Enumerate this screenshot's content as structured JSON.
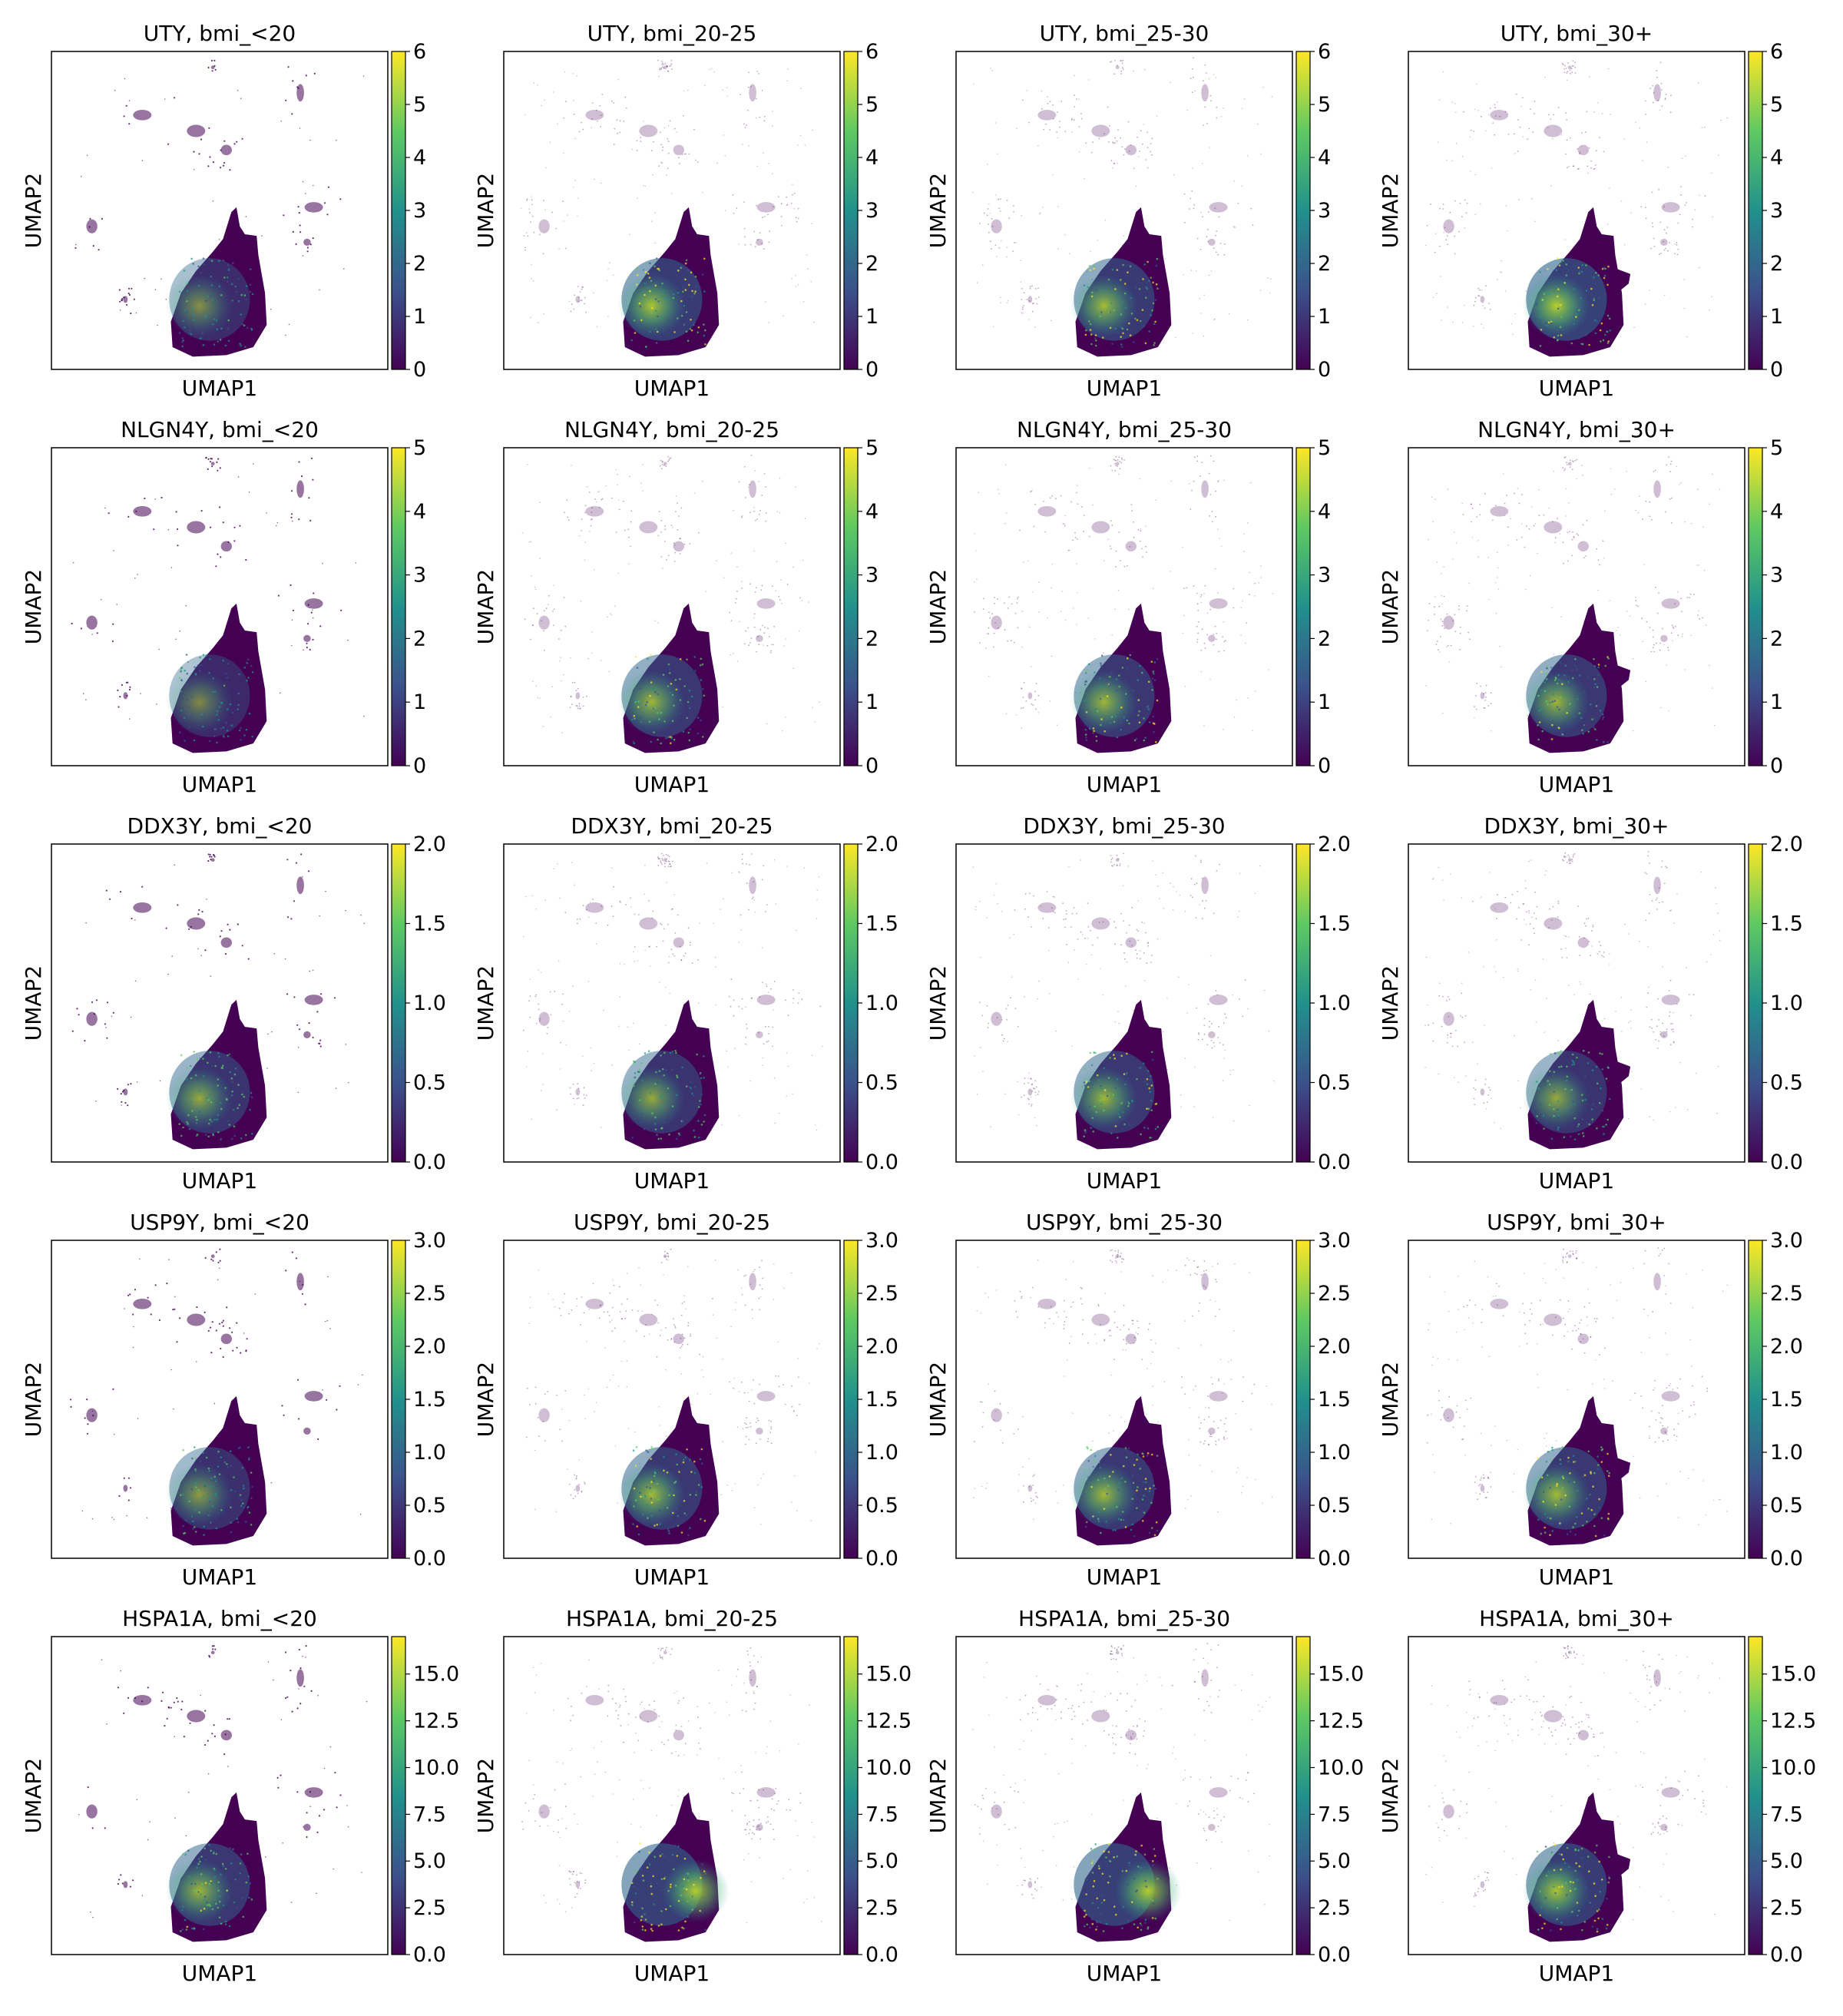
{
  "figure": {
    "xlabel": "UMAP1",
    "ylabel": "UMAP2",
    "colormap": "viridis",
    "colormap_stops": [
      "#440154",
      "#3b528b",
      "#21918c",
      "#5ec962",
      "#fde725"
    ],
    "background": "#ffffff",
    "rows": 5,
    "columns": 4
  },
  "chart_data": [
    {
      "type": "scatter",
      "title": "UTY, bmi_<20",
      "gene": "UTY",
      "group": "bmi_<20",
      "xlabel": "UMAP1",
      "ylabel": "UMAP2",
      "colorbar": {
        "min": 0,
        "max": 6,
        "ticks": [
          "0",
          "1",
          "2",
          "3",
          "4",
          "5",
          "6"
        ]
      },
      "max_expression_shown": 2.5
    },
    {
      "type": "scatter",
      "title": "UTY, bmi_20-25",
      "gene": "UTY",
      "group": "bmi_20-25",
      "xlabel": "UMAP1",
      "ylabel": "UMAP2",
      "colorbar": {
        "min": 0,
        "max": 6,
        "ticks": [
          "0",
          "1",
          "2",
          "3",
          "4",
          "5",
          "6"
        ]
      },
      "max_expression_shown": 5
    },
    {
      "type": "scatter",
      "title": "UTY, bmi_25-30",
      "gene": "UTY",
      "group": "bmi_25-30",
      "xlabel": "UMAP1",
      "ylabel": "UMAP2",
      "colorbar": {
        "min": 0,
        "max": 6,
        "ticks": [
          "0",
          "1",
          "2",
          "3",
          "4",
          "5",
          "6"
        ]
      },
      "max_expression_shown": 4.5
    },
    {
      "type": "scatter",
      "title": "UTY, bmi_30+",
      "gene": "UTY",
      "group": "bmi_30+",
      "xlabel": "UMAP1",
      "ylabel": "UMAP2",
      "colorbar": {
        "min": 0,
        "max": 6,
        "ticks": [
          "0",
          "1",
          "2",
          "3",
          "4",
          "5",
          "6"
        ]
      },
      "max_expression_shown": 5.5
    },
    {
      "type": "scatter",
      "title": "NLGN4Y, bmi_<20",
      "gene": "NLGN4Y",
      "group": "bmi_<20",
      "xlabel": "UMAP1",
      "ylabel": "UMAP2",
      "colorbar": {
        "min": 0,
        "max": 5,
        "ticks": [
          "0",
          "1",
          "2",
          "3",
          "4",
          "5"
        ]
      },
      "max_expression_shown": 1.8
    },
    {
      "type": "scatter",
      "title": "NLGN4Y, bmi_20-25",
      "gene": "NLGN4Y",
      "group": "bmi_20-25",
      "xlabel": "UMAP1",
      "ylabel": "UMAP2",
      "colorbar": {
        "min": 0,
        "max": 5,
        "ticks": [
          "0",
          "1",
          "2",
          "3",
          "4",
          "5"
        ]
      },
      "max_expression_shown": 3.5
    },
    {
      "type": "scatter",
      "title": "NLGN4Y, bmi_25-30",
      "gene": "NLGN4Y",
      "group": "bmi_25-30",
      "xlabel": "UMAP1",
      "ylabel": "UMAP2",
      "colorbar": {
        "min": 0,
        "max": 5,
        "ticks": [
          "0",
          "1",
          "2",
          "3",
          "4",
          "5"
        ]
      },
      "max_expression_shown": 3.5
    },
    {
      "type": "scatter",
      "title": "NLGN4Y, bmi_30+",
      "gene": "NLGN4Y",
      "group": "bmi_30+",
      "xlabel": "UMAP1",
      "ylabel": "UMAP2",
      "colorbar": {
        "min": 0,
        "max": 5,
        "ticks": [
          "0",
          "1",
          "2",
          "3",
          "4",
          "5"
        ]
      },
      "max_expression_shown": 3.5
    },
    {
      "type": "scatter",
      "title": "DDX3Y, bmi_<20",
      "gene": "DDX3Y",
      "group": "bmi_<20",
      "xlabel": "UMAP1",
      "ylabel": "UMAP2",
      "colorbar": {
        "min": 0,
        "max": 2,
        "ticks": [
          "0.0",
          "0.5",
          "1.0",
          "1.5",
          "2.0"
        ]
      },
      "max_expression_shown": 1.2
    },
    {
      "type": "scatter",
      "title": "DDX3Y, bmi_20-25",
      "gene": "DDX3Y",
      "group": "bmi_20-25",
      "xlabel": "UMAP1",
      "ylabel": "UMAP2",
      "colorbar": {
        "min": 0,
        "max": 2,
        "ticks": [
          "0.0",
          "0.5",
          "1.0",
          "1.5",
          "2.0"
        ]
      },
      "max_expression_shown": 1.2
    },
    {
      "type": "scatter",
      "title": "DDX3Y, bmi_25-30",
      "gene": "DDX3Y",
      "group": "bmi_25-30",
      "xlabel": "UMAP1",
      "ylabel": "UMAP2",
      "colorbar": {
        "min": 0,
        "max": 2,
        "ticks": [
          "0.0",
          "0.5",
          "1.0",
          "1.5",
          "2.0"
        ]
      },
      "max_expression_shown": 1.4
    },
    {
      "type": "scatter",
      "title": "DDX3Y, bmi_30+",
      "gene": "DDX3Y",
      "group": "bmi_30+",
      "xlabel": "UMAP1",
      "ylabel": "UMAP2",
      "colorbar": {
        "min": 0,
        "max": 2,
        "ticks": [
          "0.0",
          "0.5",
          "1.0",
          "1.5",
          "2.0"
        ]
      },
      "max_expression_shown": 1.2
    },
    {
      "type": "scatter",
      "title": "USP9Y, bmi_<20",
      "gene": "USP9Y",
      "group": "bmi_<20",
      "xlabel": "UMAP1",
      "ylabel": "UMAP2",
      "colorbar": {
        "min": 0,
        "max": 3,
        "ticks": [
          "0.0",
          "0.5",
          "1.0",
          "1.5",
          "2.0",
          "2.5",
          "3.0"
        ]
      },
      "max_expression_shown": 1.5
    },
    {
      "type": "scatter",
      "title": "USP9Y, bmi_20-25",
      "gene": "USP9Y",
      "group": "bmi_20-25",
      "xlabel": "UMAP1",
      "ylabel": "UMAP2",
      "colorbar": {
        "min": 0,
        "max": 3,
        "ticks": [
          "0.0",
          "0.5",
          "1.0",
          "1.5",
          "2.0",
          "2.5",
          "3.0"
        ]
      },
      "max_expression_shown": 2.2
    },
    {
      "type": "scatter",
      "title": "USP9Y, bmi_25-30",
      "gene": "USP9Y",
      "group": "bmi_25-30",
      "xlabel": "UMAP1",
      "ylabel": "UMAP2",
      "colorbar": {
        "min": 0,
        "max": 3,
        "ticks": [
          "0.0",
          "0.5",
          "1.0",
          "1.5",
          "2.0",
          "2.5",
          "3.0"
        ]
      },
      "max_expression_shown": 2.2
    },
    {
      "type": "scatter",
      "title": "USP9Y, bmi_30+",
      "gene": "USP9Y",
      "group": "bmi_30+",
      "xlabel": "UMAP1",
      "ylabel": "UMAP2",
      "colorbar": {
        "min": 0,
        "max": 3,
        "ticks": [
          "0.0",
          "0.5",
          "1.0",
          "1.5",
          "2.0",
          "2.5",
          "3.0"
        ]
      },
      "max_expression_shown": 2.2
    },
    {
      "type": "scatter",
      "title": "HSPA1A, bmi_<20",
      "gene": "HSPA1A",
      "group": "bmi_<20",
      "xlabel": "UMAP1",
      "ylabel": "UMAP2",
      "colorbar": {
        "min": 0,
        "max": 17,
        "ticks": [
          "0.0",
          "2.5",
          "5.0",
          "7.5",
          "10.0",
          "12.5",
          "15.0"
        ]
      },
      "max_expression_shown": 12
    },
    {
      "type": "scatter",
      "title": "HSPA1A, bmi_20-25",
      "gene": "HSPA1A",
      "group": "bmi_20-25",
      "xlabel": "UMAP1",
      "ylabel": "UMAP2",
      "colorbar": {
        "min": 0,
        "max": 17,
        "ticks": [
          "0.0",
          "2.5",
          "5.0",
          "7.5",
          "10.0",
          "12.5",
          "15.0"
        ]
      },
      "max_expression_shown": 15
    },
    {
      "type": "scatter",
      "title": "HSPA1A, bmi_25-30",
      "gene": "HSPA1A",
      "group": "bmi_25-30",
      "xlabel": "UMAP1",
      "ylabel": "UMAP2",
      "colorbar": {
        "min": 0,
        "max": 17,
        "ticks": [
          "0.0",
          "2.5",
          "5.0",
          "7.5",
          "10.0",
          "12.5",
          "15.0"
        ]
      },
      "max_expression_shown": 15
    },
    {
      "type": "scatter",
      "title": "HSPA1A, bmi_30+",
      "gene": "HSPA1A",
      "group": "bmi_30+",
      "xlabel": "UMAP1",
      "ylabel": "UMAP2",
      "colorbar": {
        "min": 0,
        "max": 17,
        "ticks": [
          "0.0",
          "2.5",
          "5.0",
          "7.5",
          "10.0",
          "12.5",
          "15.0"
        ]
      },
      "max_expression_shown": 14
    }
  ]
}
